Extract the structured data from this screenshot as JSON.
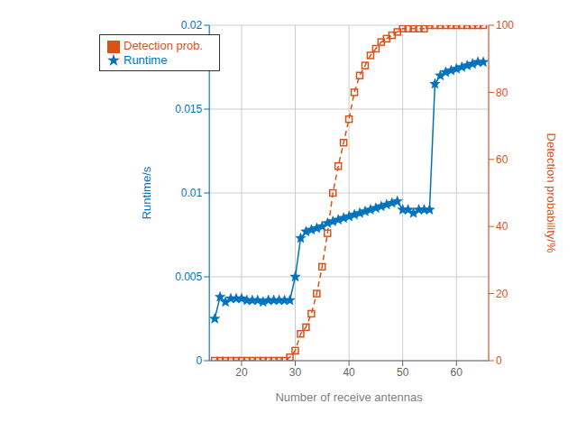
{
  "chart_data": {
    "type": "line",
    "xlabel": "Number of receive antennas",
    "ylabel": "Runtime/s",
    "y2label": "Detection probability/%",
    "x": [
      15,
      16,
      17,
      18,
      19,
      20,
      21,
      22,
      23,
      24,
      25,
      26,
      27,
      28,
      29,
      30,
      31,
      32,
      33,
      34,
      35,
      36,
      37,
      38,
      39,
      40,
      41,
      42,
      43,
      44,
      45,
      46,
      47,
      48,
      49,
      50,
      51,
      52,
      53,
      54,
      55,
      56,
      57,
      58,
      59,
      60,
      61,
      62,
      63,
      64,
      65
    ],
    "series": [
      {
        "name": "Runtime",
        "color": "#0072BD",
        "marker": "star",
        "line_style": "solid",
        "values": [
          0.0025,
          0.0038,
          0.0035,
          0.0037,
          0.0037,
          0.0037,
          0.0036,
          0.0036,
          0.0036,
          0.0035,
          0.0036,
          0.0036,
          0.0036,
          0.0036,
          0.0036,
          0.005,
          0.0073,
          0.0077,
          0.0078,
          0.0079,
          0.008,
          0.0082,
          0.0083,
          0.0084,
          0.0085,
          0.0086,
          0.0087,
          0.0088,
          0.0089,
          0.009,
          0.0091,
          0.0092,
          0.0093,
          0.0094,
          0.0095,
          0.009,
          0.009,
          0.0088,
          0.009,
          0.009,
          0.009,
          0.0165,
          0.017,
          0.0172,
          0.0173,
          0.0174,
          0.0175,
          0.0176,
          0.0177,
          0.0178,
          0.0178
        ]
      },
      {
        "name": "Detection prob.",
        "color": "#D95319",
        "marker": "square",
        "line_style": "dashed",
        "axis": "y2",
        "values": [
          0,
          0,
          0,
          0,
          0,
          0,
          0,
          0,
          0,
          0,
          0,
          0,
          0,
          0,
          1,
          3,
          8,
          10,
          14,
          20,
          28,
          38,
          50,
          58,
          65,
          72,
          80,
          85,
          88,
          91,
          93,
          95,
          96,
          97,
          98,
          99,
          99,
          99,
          99,
          99,
          100,
          100,
          100,
          100,
          100,
          100,
          100,
          100,
          100,
          100,
          100
        ]
      }
    ],
    "xlim": [
      14,
      66
    ],
    "xticks": [
      20,
      30,
      40,
      50,
      60
    ],
    "ylim": [
      0,
      0.02
    ],
    "yticks": [
      0,
      0.005,
      0.01,
      0.015,
      0.02
    ],
    "y2lim": [
      0,
      100
    ],
    "y2ticks": [
      0,
      20,
      40,
      60,
      80,
      100
    ],
    "grid": true,
    "legend": "upper left"
  }
}
